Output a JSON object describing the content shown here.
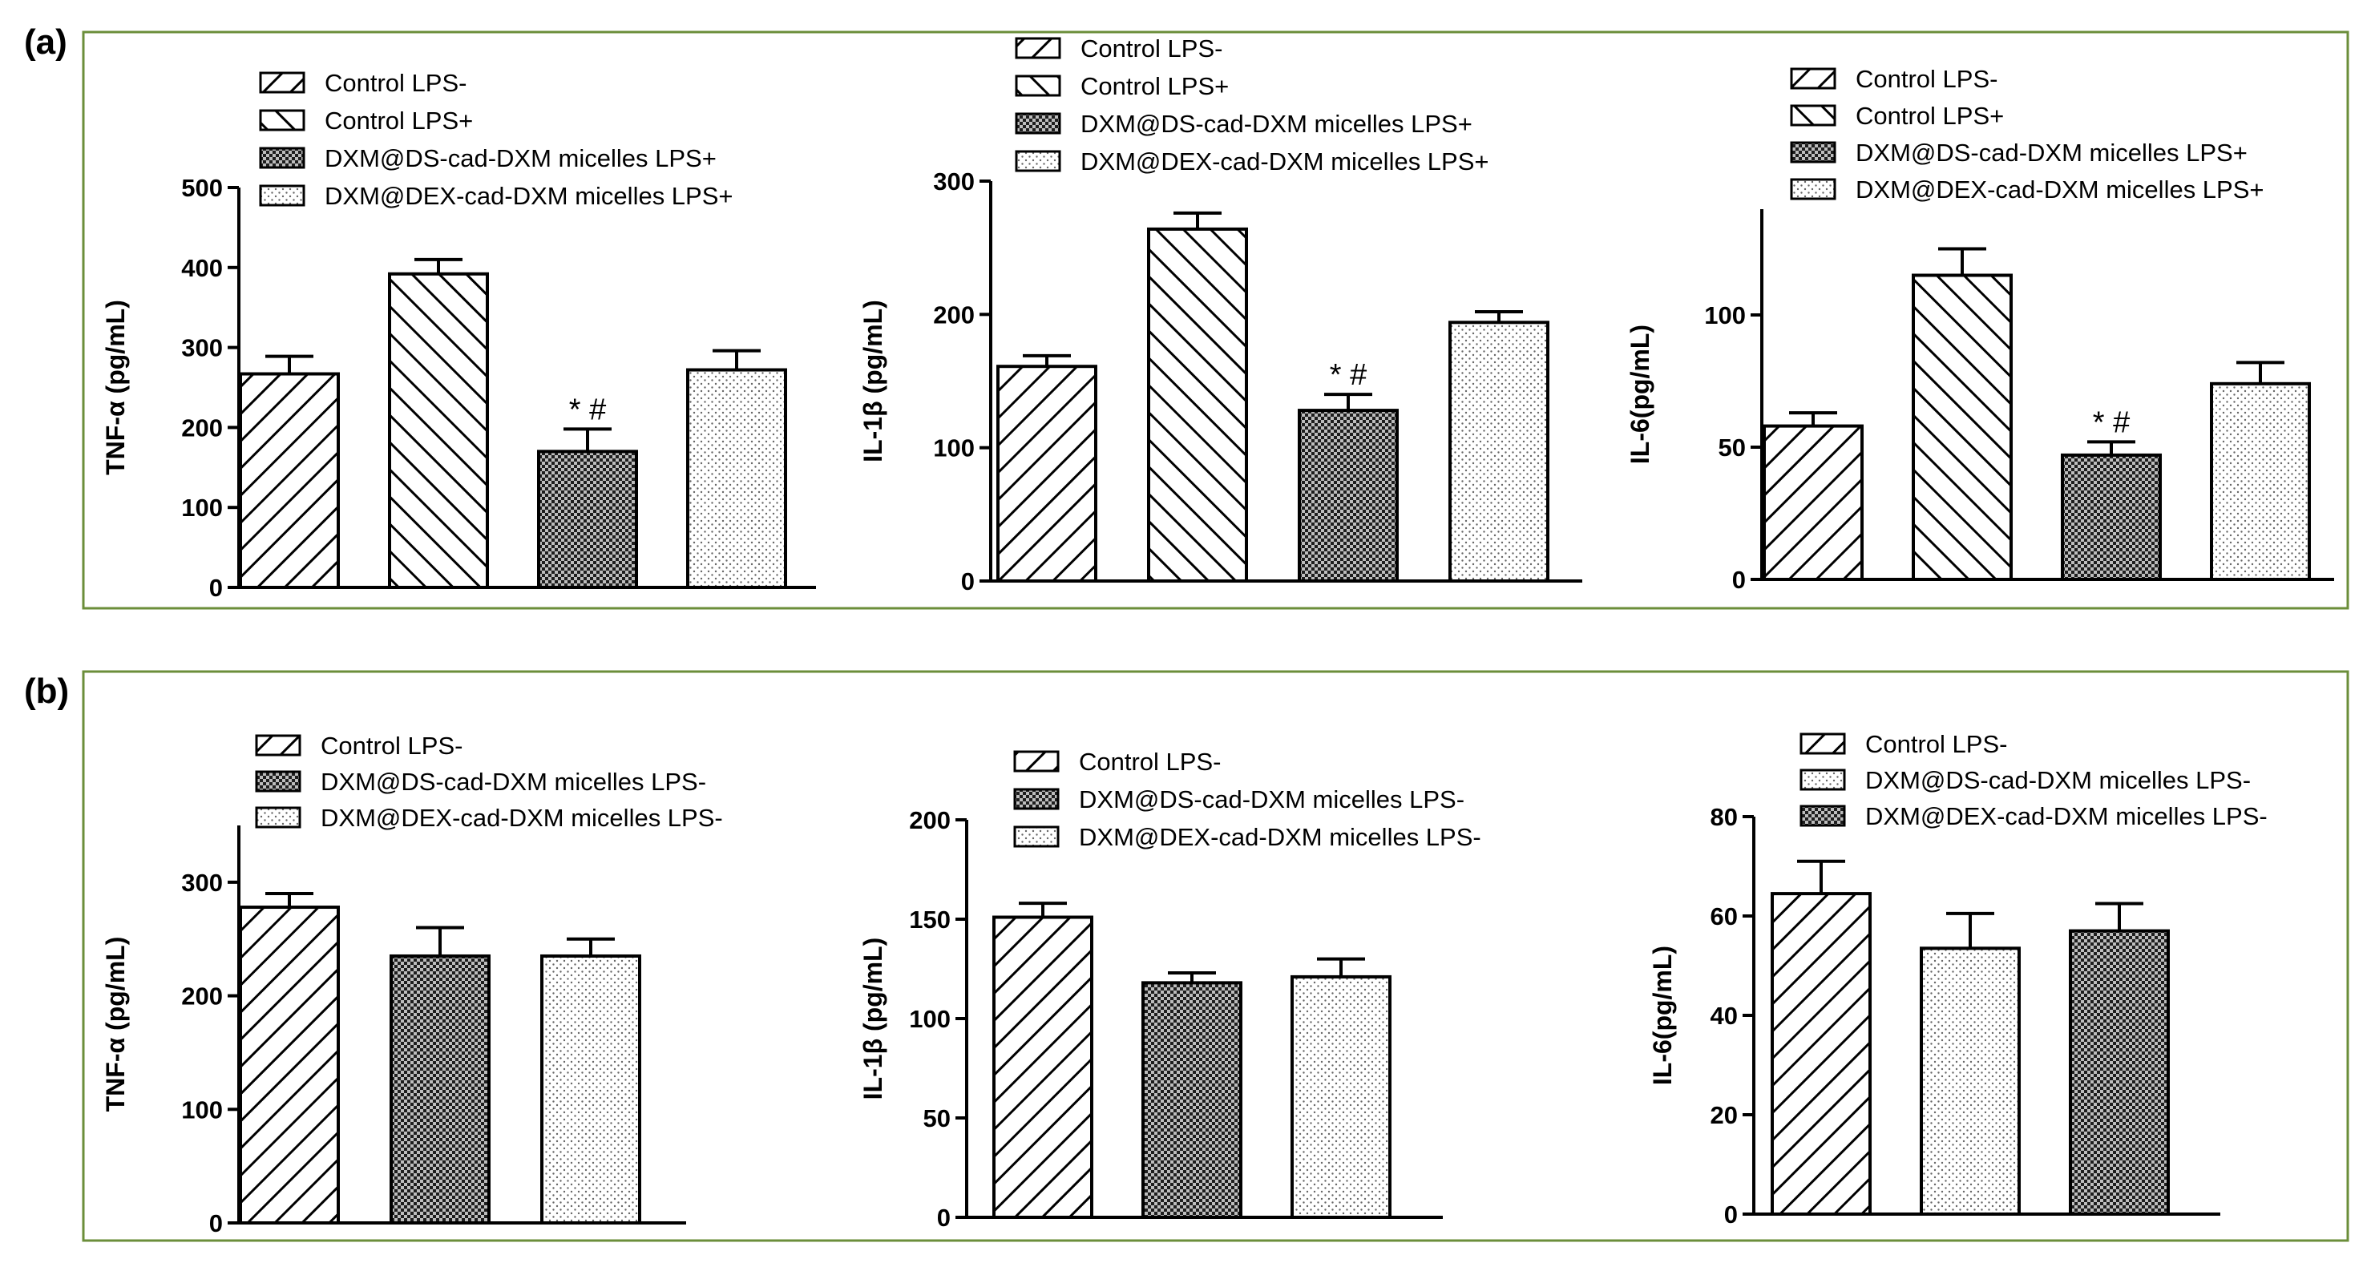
{
  "panels": [
    {
      "id": "a",
      "label": "(a)"
    },
    {
      "id": "b",
      "label": "(b)"
    }
  ],
  "colors": {
    "frame": "#6b8e3a",
    "bar_stroke": "#000000",
    "background": "#ffffff"
  },
  "chart_data": [
    {
      "panel": "(a)",
      "type": "bar",
      "ylabel": "TNF-α (pg/mL)",
      "ylim": [
        0,
        500
      ],
      "yticks": [
        "0",
        "100",
        "200",
        "300",
        "400",
        "500"
      ],
      "legend": [
        "Control LPS-",
        "Control LPS+",
        "DXM@DS-cad-DXM micelles LPS+",
        "DXM@DEX-cad-DXM micelles LPS+"
      ],
      "patterns": [
        "diag-right",
        "diag-left",
        "checker",
        "dots"
      ],
      "values": [
        267,
        392,
        170,
        272
      ],
      "errors": [
        22,
        18,
        28,
        24
      ],
      "annotations": [
        "",
        "",
        "* #",
        ""
      ]
    },
    {
      "panel": "(a)",
      "type": "bar",
      "ylabel": "IL-1β (pg/mL)",
      "ylim": [
        0,
        300
      ],
      "yticks": [
        "0",
        "100",
        "200",
        "300"
      ],
      "legend": [
        "Control LPS-",
        "Control LPS+",
        "DXM@DS-cad-DXM micelles LPS+",
        "DXM@DEX-cad-DXM micelles LPS+"
      ],
      "patterns": [
        "diag-right",
        "diag-left",
        "checker",
        "dots"
      ],
      "values": [
        161,
        264,
        128,
        194
      ],
      "errors": [
        8,
        12,
        12,
        8
      ],
      "annotations": [
        "",
        "",
        "* #",
        ""
      ]
    },
    {
      "panel": "(a)",
      "type": "bar",
      "ylabel": "IL-6(pg/mL)",
      "ylim": [
        0,
        140
      ],
      "yticks": [
        "0",
        "50",
        "100"
      ],
      "legend": [
        "Control LPS-",
        "Control LPS+",
        "DXM@DS-cad-DXM micelles LPS+",
        "DXM@DEX-cad-DXM micelles LPS+"
      ],
      "patterns": [
        "diag-right",
        "diag-left",
        "checker",
        "dots"
      ],
      "values": [
        58,
        115,
        47,
        74
      ],
      "errors": [
        5,
        10,
        5,
        8
      ],
      "annotations": [
        "",
        "",
        "* #",
        ""
      ]
    },
    {
      "panel": "(b)",
      "type": "bar",
      "ylabel": "TNF-α (pg/mL)",
      "ylim": [
        0,
        350
      ],
      "yticks": [
        "0",
        "100",
        "200",
        "300"
      ],
      "legend": [
        "Control LPS-",
        "DXM@DS-cad-DXM micelles LPS-",
        "DXM@DEX-cad-DXM micelles LPS-"
      ],
      "patterns": [
        "diag-right",
        "checker",
        "dots"
      ],
      "values": [
        278,
        235,
        235
      ],
      "errors": [
        12,
        25,
        15
      ],
      "annotations": [
        "",
        "",
        ""
      ]
    },
    {
      "panel": "(b)",
      "type": "bar",
      "ylabel": "IL-1β (pg/mL)",
      "ylim": [
        0,
        200
      ],
      "yticks": [
        "0",
        "50",
        "100",
        "150",
        "200"
      ],
      "legend": [
        "Control LPS-",
        "DXM@DS-cad-DXM micelles LPS-",
        "DXM@DEX-cad-DXM micelles LPS-"
      ],
      "patterns": [
        "diag-right",
        "checker",
        "dots"
      ],
      "values": [
        151,
        118,
        121
      ],
      "errors": [
        7,
        5,
        9
      ],
      "annotations": [
        "",
        "",
        ""
      ]
    },
    {
      "panel": "(b)",
      "type": "bar",
      "ylabel": "IL-6(pg/mL)",
      "ylim": [
        0,
        80
      ],
      "yticks": [
        "0",
        "20",
        "40",
        "60",
        "80"
      ],
      "legend": [
        "Control LPS-",
        "DXM@DS-cad-DXM micelles LPS-",
        "DXM@DEX-cad-DXM micelles LPS-"
      ],
      "patterns": [
        "diag-right",
        "dots",
        "checker"
      ],
      "values": [
        64.5,
        53.5,
        57
      ],
      "errors": [
        6.5,
        7,
        5.5
      ],
      "annotations": [
        "",
        "",
        ""
      ]
    }
  ]
}
